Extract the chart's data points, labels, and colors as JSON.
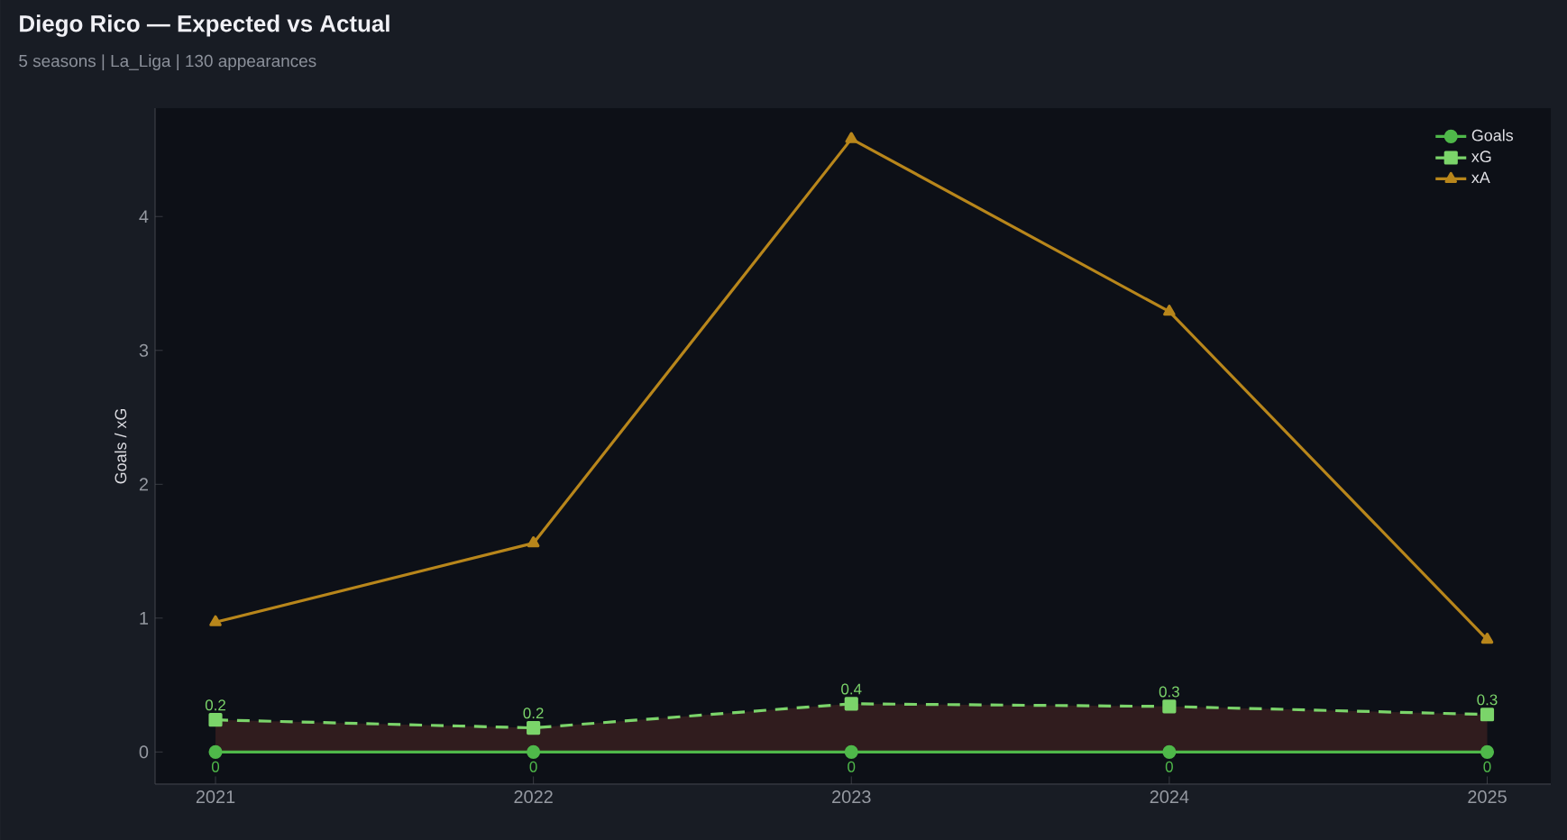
{
  "chart_data": {
    "type": "line",
    "title": "Diego Rico — Expected vs Actual",
    "subtitle": "5 seasons | La_Liga | 130 appearances",
    "ylabel": "Goals / xG",
    "x": [
      2021,
      2022,
      2023,
      2024,
      2025
    ],
    "series": [
      {
        "name": "Goals",
        "color": "#4fb84a",
        "marker": "circle",
        "line_style": "solid",
        "values": [
          0,
          0,
          0,
          0,
          0
        ],
        "value_labels": [
          "0",
          "0",
          "0",
          "0",
          "0"
        ]
      },
      {
        "name": "xG",
        "color": "#7bd46a",
        "marker": "square",
        "line_style": "dashed",
        "values": [
          0.24,
          0.18,
          0.36,
          0.34,
          0.28
        ],
        "lower": [
          0,
          0,
          0,
          0,
          0
        ],
        "upper": [
          0.24,
          0.18,
          0.36,
          0.34,
          0.28
        ],
        "value_labels": [
          "0.2",
          "0.2",
          "0.4",
          "0.3",
          "0.3"
        ]
      },
      {
        "name": "xA",
        "color": "#b8861b",
        "marker": "triangle",
        "line_style": "solid",
        "values": [
          0.97,
          1.56,
          4.58,
          3.29,
          0.84
        ]
      }
    ],
    "xlim": [
      2020.81,
      2025.2
    ],
    "xticks": [
      2021,
      2022,
      2023,
      2024,
      2025
    ],
    "ylim": [
      -0.24,
      4.81
    ],
    "yticks": [
      0,
      1,
      2,
      3,
      4
    ],
    "grid": false,
    "legend": "top right"
  }
}
